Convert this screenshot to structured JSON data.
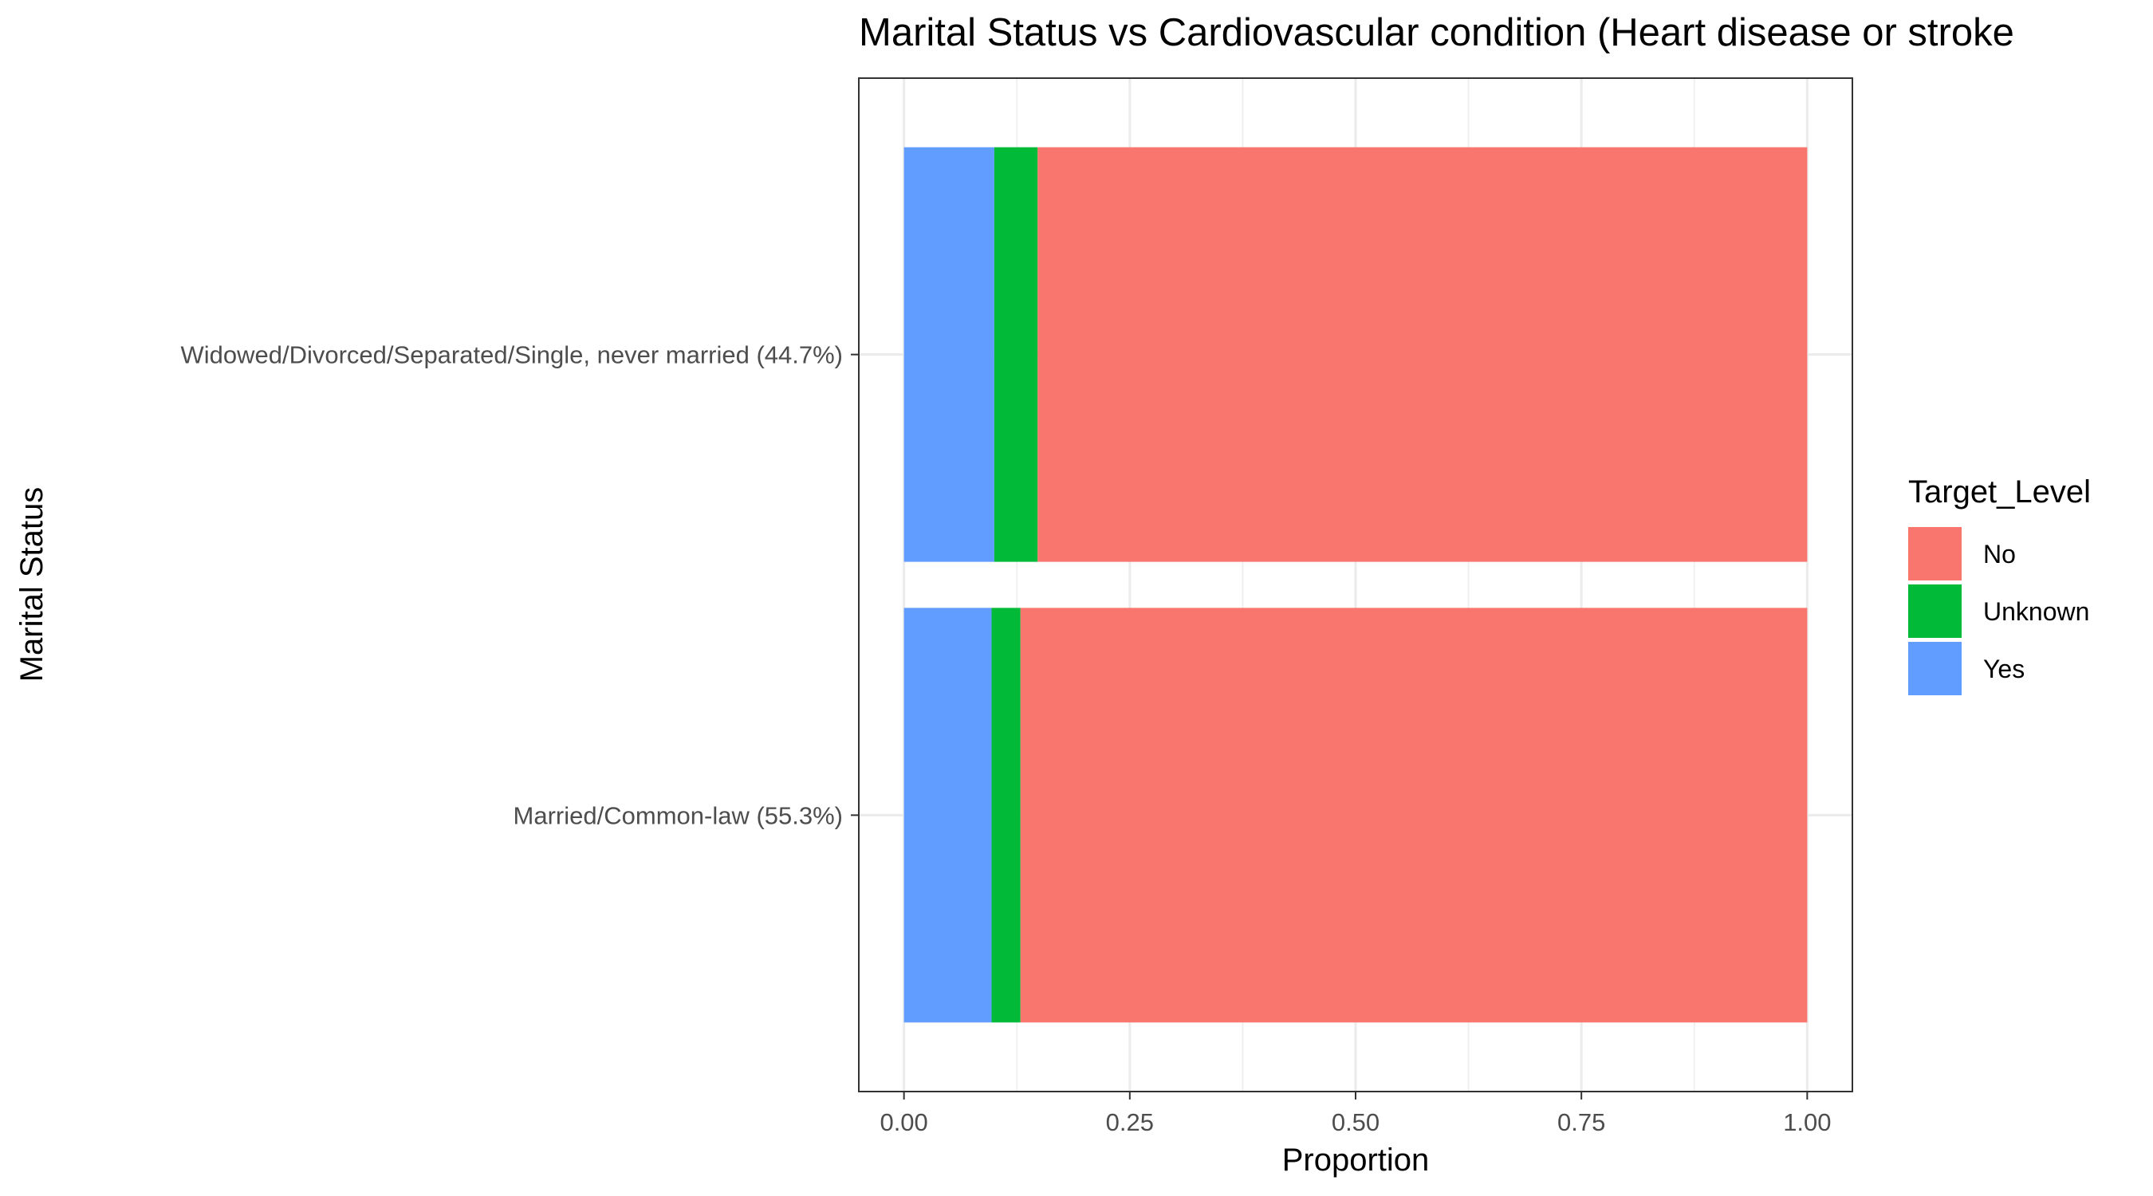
{
  "chart_data": {
    "type": "bar",
    "orientation": "horizontal",
    "stacked": true,
    "title": "Marital Status vs Cardiovascular condition (Heart disease or stroke",
    "xlabel": "Proportion",
    "ylabel": "Marital Status",
    "xlim": [
      -0.05,
      1.05
    ],
    "xticks": [
      "0.00",
      "0.25",
      "0.50",
      "0.75",
      "1.00"
    ],
    "xtick_values": [
      0,
      0.25,
      0.5,
      0.75,
      1.0
    ],
    "grid": true,
    "categories": [
      "Married/Common-law (55.3%)",
      "Widowed/Divorced/Separated/Single, never married (44.7%)"
    ],
    "stack_order": [
      "Yes",
      "Unknown",
      "No"
    ],
    "series": [
      {
        "name": "Yes",
        "color": "#619CFF",
        "values": [
          0.097,
          0.1
        ]
      },
      {
        "name": "Unknown",
        "color": "#00BA38",
        "values": [
          0.032,
          0.048
        ]
      },
      {
        "name": "No",
        "color": "#F8766D",
        "values": [
          0.871,
          0.852
        ]
      }
    ],
    "legend": {
      "title": "Target_Level",
      "position": "right",
      "entries": [
        {
          "label": "No",
          "color": "#F8766D"
        },
        {
          "label": "Unknown",
          "color": "#00BA38"
        },
        {
          "label": "Yes",
          "color": "#619CFF"
        }
      ]
    }
  }
}
